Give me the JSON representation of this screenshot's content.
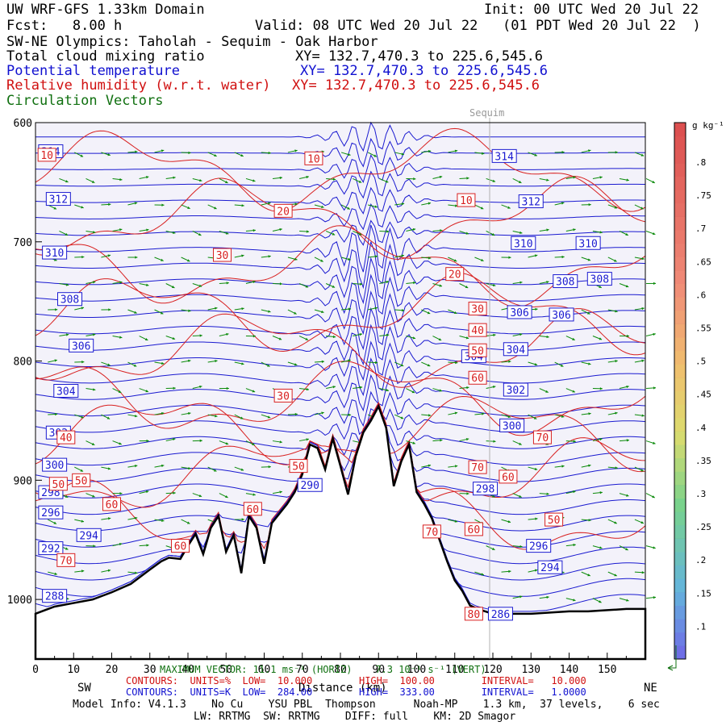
{
  "header": {
    "line1_left": "UW WRF-GFS 1.33km Domain",
    "line1_right": "Init: 00 UTC Wed 20 Jul 22",
    "fcst": "Fcst:   8.00 h",
    "valid": "Valid: 08 UTC Wed 20 Jul 22   (01 PDT Wed 20 Jul 22  )",
    "transect": "SW-NE Olympics: Taholah - Sequim - Oak Harbor",
    "var1": "Total cloud mixing ratio",
    "var1_xy": "XY= 132.7,470.3 to 225.6,545.6",
    "var2": "Potential temperature",
    "var2_xy": "XY= 132.7,470.3 to 225.6,545.6",
    "var3": "Relative humidity (w.r.t. water)",
    "var3_xy": "XY= 132.7,470.3 to 225.6,545.6",
    "var4": "Circulation Vectors"
  },
  "place_label": "Sequim",
  "directions": {
    "left": "SW",
    "right": "NE"
  },
  "colorbar": {
    "unit": "g kg⁻¹",
    "labels": [
      ".8",
      ".75",
      ".7",
      ".65",
      ".6",
      ".55",
      ".5",
      ".45",
      ".4",
      ".35",
      ".3",
      ".25",
      ".2",
      ".15",
      ".1"
    ]
  },
  "footer": {
    "max_vector": "MAXIMUM VECTOR: 11.1 ms⁻¹ (HORIZ)    7.3 10⁻¹ s⁻¹ (VERT)",
    "xlabel": "Distance (km)",
    "red_contours": "CONTOURS:  UNITS=%  LOW=  10.000        HIGH=  100.00        INTERVAL=   10.000",
    "blue_contours": "CONTOURS:  UNITS=K  LOW=  284.00        HIGH=  333.00        INTERVAL=   1.0000",
    "model_info": "Model Info: V4.1.3    No Cu    YSU PBL  Thompson      Noah-MP    1.3 km,  37 levels,    6 sec",
    "model_info2": "LW: RRTMG  SW: RRTMG    DIFF: full    KM: 2D Smagor"
  },
  "chart_data": {
    "type": "cross-section",
    "xlabel": "Distance (km)",
    "ylabel": "Pressure (hPa)",
    "xlim": [
      0,
      160
    ],
    "ylim": [
      1050,
      600
    ],
    "x_ticks": [
      0,
      10,
      20,
      30,
      40,
      50,
      60,
      70,
      80,
      90,
      100,
      110,
      120,
      130,
      140,
      150
    ],
    "y_ticks": [
      600,
      700,
      800,
      900,
      1000
    ],
    "sequim_km": 120,
    "terrain": {
      "x": [
        0,
        5,
        10,
        15,
        20,
        25,
        30,
        33,
        35,
        38,
        40,
        42,
        44,
        46,
        48,
        50,
        52,
        54,
        56,
        58,
        60,
        62,
        64,
        66,
        68,
        70,
        72,
        74,
        76,
        78,
        80,
        82,
        84,
        86,
        88,
        90,
        92,
        94,
        96,
        98,
        100,
        102,
        104,
        106,
        108,
        110,
        112,
        114,
        116,
        118,
        120,
        125,
        130,
        135,
        140,
        145,
        150,
        155,
        160
      ],
      "p": [
        1012,
        1006,
        1003,
        1000,
        994,
        987,
        975,
        968,
        965,
        966,
        955,
        945,
        962,
        940,
        930,
        960,
        946,
        978,
        930,
        940,
        970,
        936,
        928,
        920,
        910,
        895,
        870,
        873,
        891,
        865,
        888,
        912,
        880,
        860,
        850,
        838,
        856,
        905,
        884,
        870,
        910,
        920,
        932,
        950,
        968,
        984,
        993,
        1005,
        1008,
        1010,
        1012,
        1012,
        1012,
        1011,
        1010,
        1010,
        1009,
        1008,
        1008
      ]
    },
    "theta_labels": [
      {
        "v": "314",
        "x": 4,
        "p": 624
      },
      {
        "v": "314",
        "x": 123,
        "p": 628
      },
      {
        "v": "312",
        "x": 6,
        "p": 664
      },
      {
        "v": "312",
        "x": 130,
        "p": 666
      },
      {
        "v": "310",
        "x": 5,
        "p": 709
      },
      {
        "v": "310",
        "x": 128,
        "p": 701
      },
      {
        "v": "310",
        "x": 145,
        "p": 701
      },
      {
        "v": "308",
        "x": 9,
        "p": 748
      },
      {
        "v": "308",
        "x": 139,
        "p": 733
      },
      {
        "v": "308",
        "x": 148,
        "p": 731
      },
      {
        "v": "306",
        "x": 12,
        "p": 787
      },
      {
        "v": "306",
        "x": 127,
        "p": 759
      },
      {
        "v": "306",
        "x": 138,
        "p": 761
      },
      {
        "v": "304",
        "x": 8,
        "p": 825
      },
      {
        "v": "304",
        "x": 115,
        "p": 796
      },
      {
        "v": "304",
        "x": 126,
        "p": 790
      },
      {
        "v": "302",
        "x": 6,
        "p": 860
      },
      {
        "v": "302",
        "x": 126,
        "p": 824
      },
      {
        "v": "300",
        "x": 5,
        "p": 887
      },
      {
        "v": "300",
        "x": 125,
        "p": 854
      },
      {
        "v": "298",
        "x": 4,
        "p": 910
      },
      {
        "v": "298",
        "x": 118,
        "p": 907
      },
      {
        "v": "296",
        "x": 4,
        "p": 927
      },
      {
        "v": "296",
        "x": 132,
        "p": 955
      },
      {
        "v": "294",
        "x": 14,
        "p": 946
      },
      {
        "v": "292",
        "x": 4,
        "p": 957
      },
      {
        "v": "290",
        "x": 72,
        "p": 904
      },
      {
        "v": "294",
        "x": 135,
        "p": 973
      },
      {
        "v": "288",
        "x": 5,
        "p": 997
      },
      {
        "v": "286",
        "x": 122,
        "p": 1012
      }
    ],
    "rh_labels": [
      {
        "v": "10",
        "x": 3,
        "p": 627
      },
      {
        "v": "10",
        "x": 73,
        "p": 630
      },
      {
        "v": "10",
        "x": 113,
        "p": 665
      },
      {
        "v": "20",
        "x": 65,
        "p": 674
      },
      {
        "v": "20",
        "x": 110,
        "p": 727
      },
      {
        "v": "30",
        "x": 49,
        "p": 711
      },
      {
        "v": "30",
        "x": 116,
        "p": 756
      },
      {
        "v": "40",
        "x": 116,
        "p": 774
      },
      {
        "v": "50",
        "x": 116,
        "p": 791
      },
      {
        "v": "30",
        "x": 65,
        "p": 829
      },
      {
        "v": "60",
        "x": 116,
        "p": 814
      },
      {
        "v": "70",
        "x": 133,
        "p": 864
      },
      {
        "v": "40",
        "x": 8,
        "p": 864
      },
      {
        "v": "50",
        "x": 12,
        "p": 900
      },
      {
        "v": "50",
        "x": 6,
        "p": 903
      },
      {
        "v": "60",
        "x": 20,
        "p": 920
      },
      {
        "v": "50",
        "x": 69,
        "p": 888
      },
      {
        "v": "70",
        "x": 116,
        "p": 889
      },
      {
        "v": "60",
        "x": 124,
        "p": 897
      },
      {
        "v": "60",
        "x": 57,
        "p": 924
      },
      {
        "v": "50",
        "x": 136,
        "p": 933
      },
      {
        "v": "70",
        "x": 104,
        "p": 943
      },
      {
        "v": "60",
        "x": 115,
        "p": 941
      },
      {
        "v": "60",
        "x": 38,
        "p": 955
      },
      {
        "v": "70",
        "x": 8,
        "p": 967
      },
      {
        "v": "80",
        "x": 115,
        "p": 1012
      }
    ]
  }
}
